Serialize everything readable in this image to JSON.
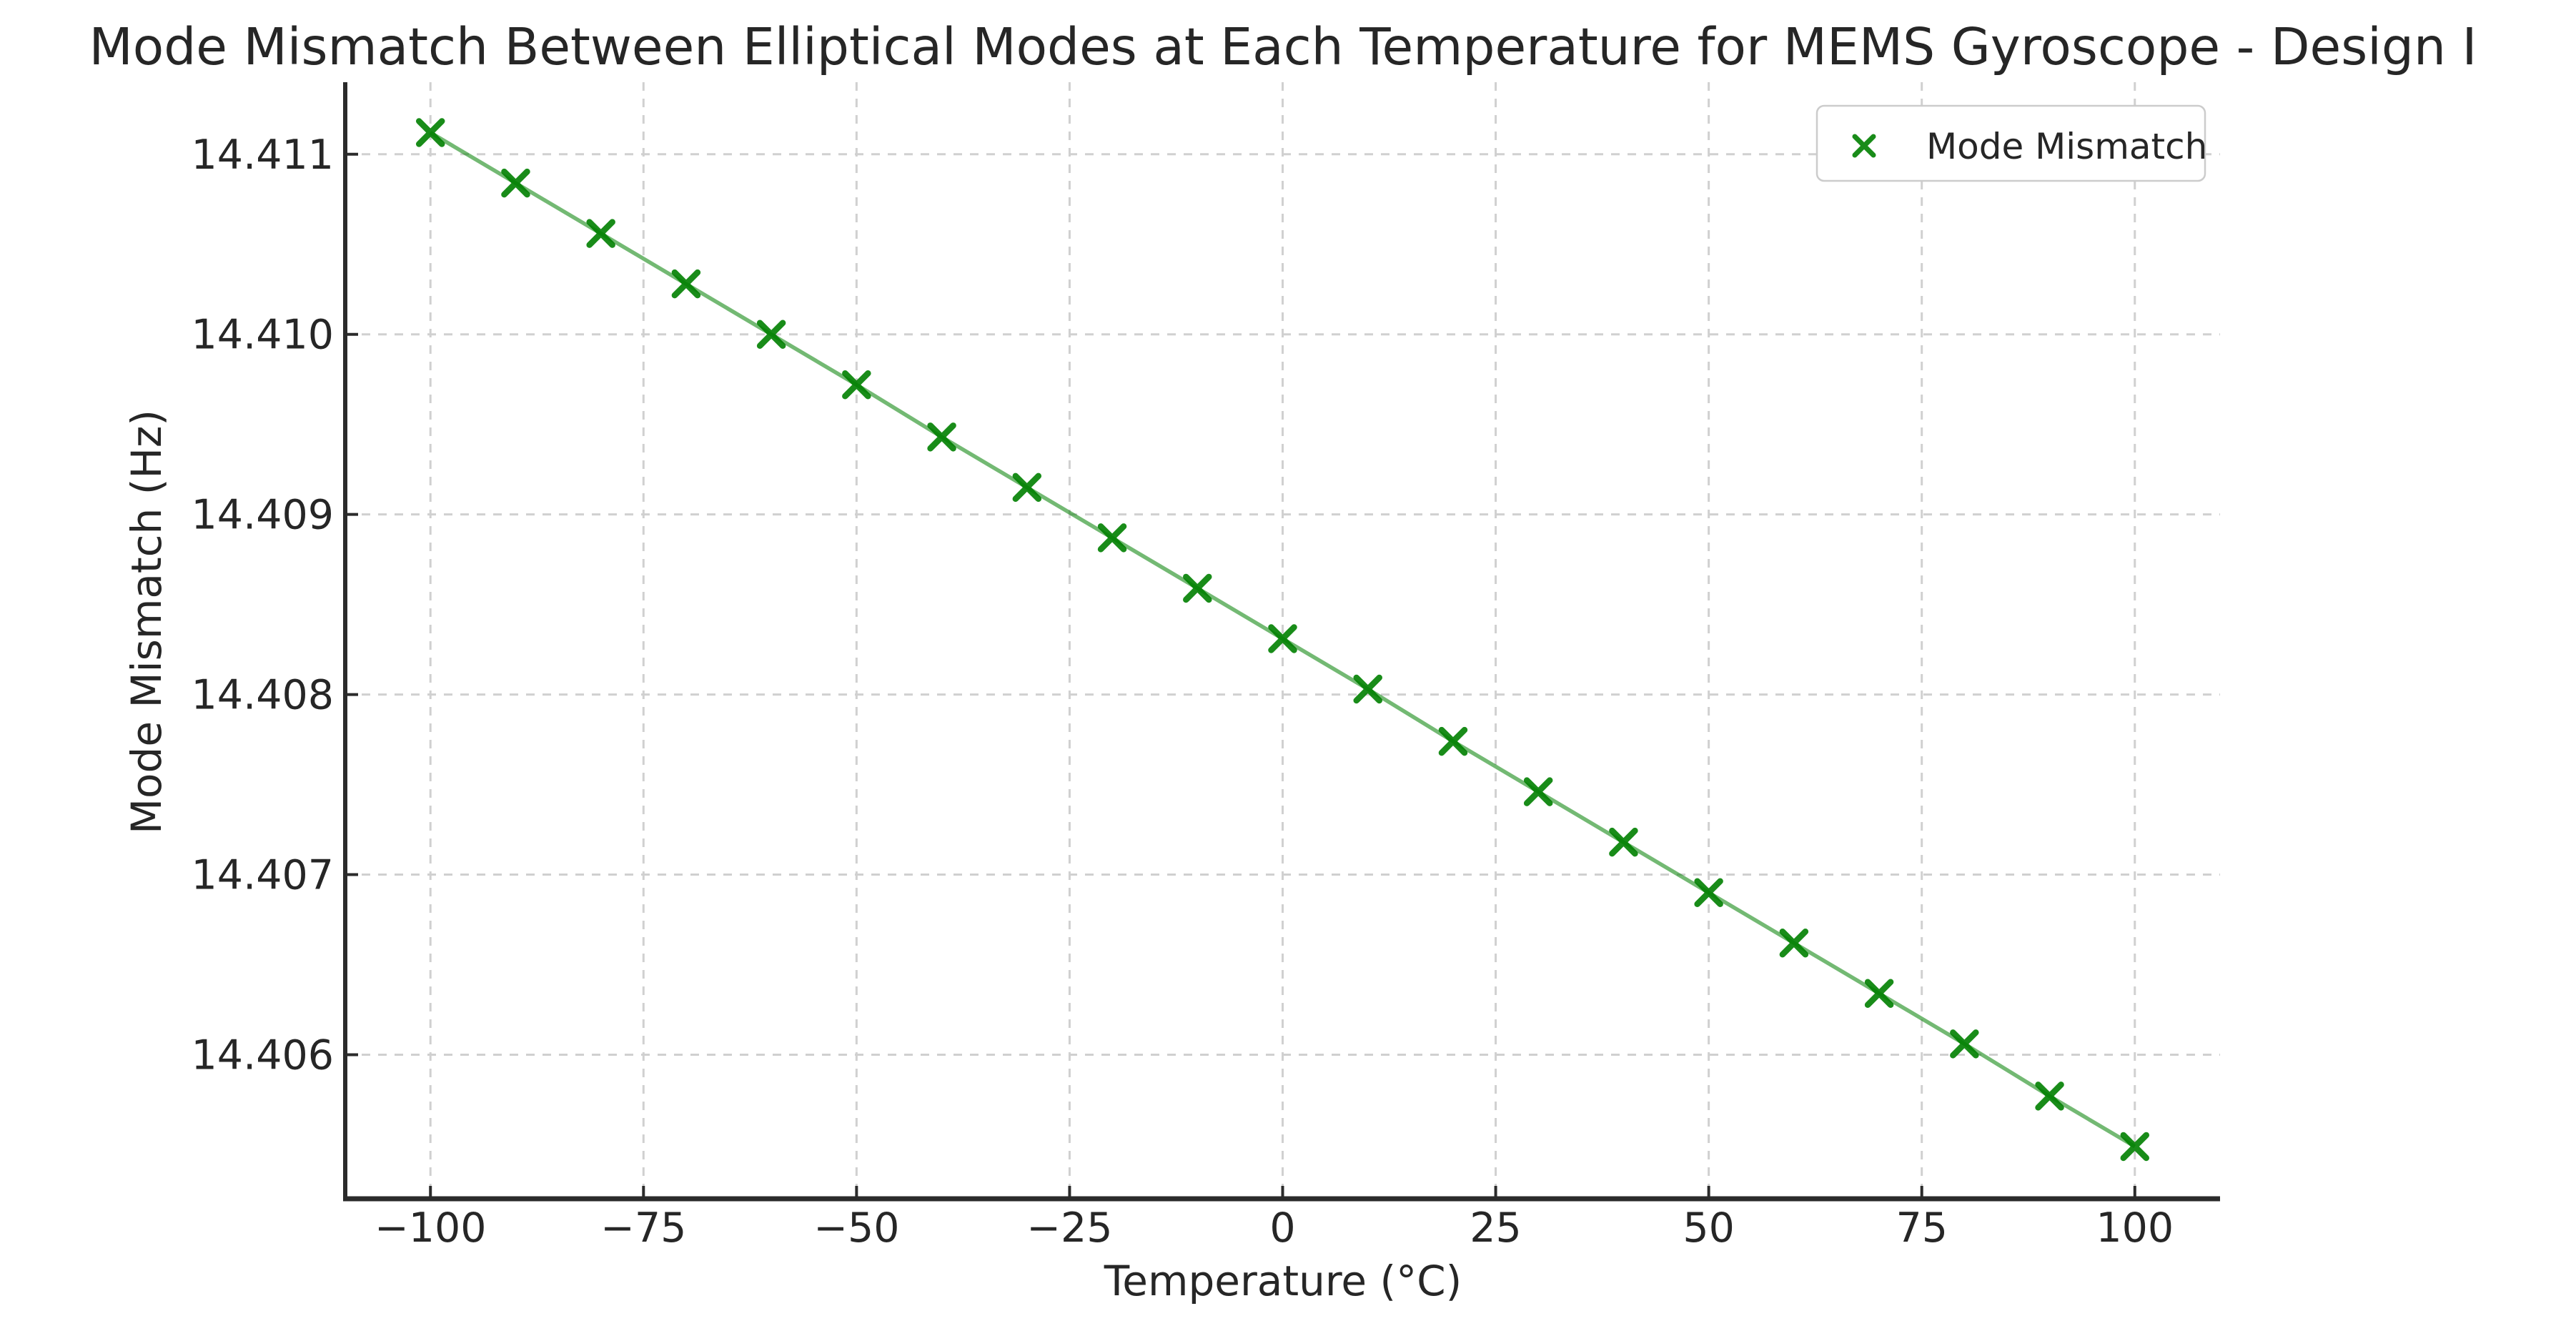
{
  "chart_data": {
    "type": "line",
    "title": "Mode Mismatch Between Elliptical Modes at Each Temperature for MEMS Gyroscope - Design I",
    "xlabel": "Temperature (°C)",
    "ylabel": "Mode Mismatch (Hz)",
    "x": [
      -100,
      -90,
      -80,
      -70,
      -60,
      -50,
      -40,
      -30,
      -20,
      -10,
      0,
      10,
      20,
      30,
      40,
      50,
      60,
      70,
      80,
      90,
      100
    ],
    "series": [
      {
        "name": "Mode Mismatch",
        "marker": "x",
        "values": [
          14.41112,
          14.41084,
          14.41056,
          14.41028,
          14.41,
          14.40972,
          14.40943,
          14.40915,
          14.40887,
          14.40859,
          14.40831,
          14.40803,
          14.40774,
          14.40746,
          14.40718,
          14.4069,
          14.40662,
          14.40634,
          14.40606,
          14.40577,
          14.40549
        ]
      }
    ],
    "xlim": [
      -110,
      110
    ],
    "ylim": [
      14.4052,
      14.4114
    ],
    "x_ticks": {
      "values": [
        -100,
        -75,
        -50,
        -25,
        0,
        25,
        50,
        75,
        100
      ],
      "labels": [
        "−100",
        "−75",
        "−50",
        "−25",
        "0",
        "25",
        "50",
        "75",
        "100"
      ]
    },
    "y_ticks": {
      "values": [
        14.406,
        14.407,
        14.408,
        14.409,
        14.41,
        14.411
      ],
      "labels": [
        "14.406",
        "14.407",
        "14.408",
        "14.409",
        "14.410",
        "14.411"
      ]
    },
    "grid": true,
    "legend": {
      "position": "upper right",
      "entries": [
        {
          "label": "Mode Mismatch",
          "marker": "x"
        }
      ]
    },
    "colors": {
      "line": "#008000",
      "line_opacity": 0.55,
      "marker": "#008000",
      "marker_opacity": 0.9,
      "grid": "#d0d0d0",
      "spine": "#2b2b2b",
      "text": "#262626",
      "legend_border": "#cccccc",
      "background": "#ffffff"
    }
  }
}
